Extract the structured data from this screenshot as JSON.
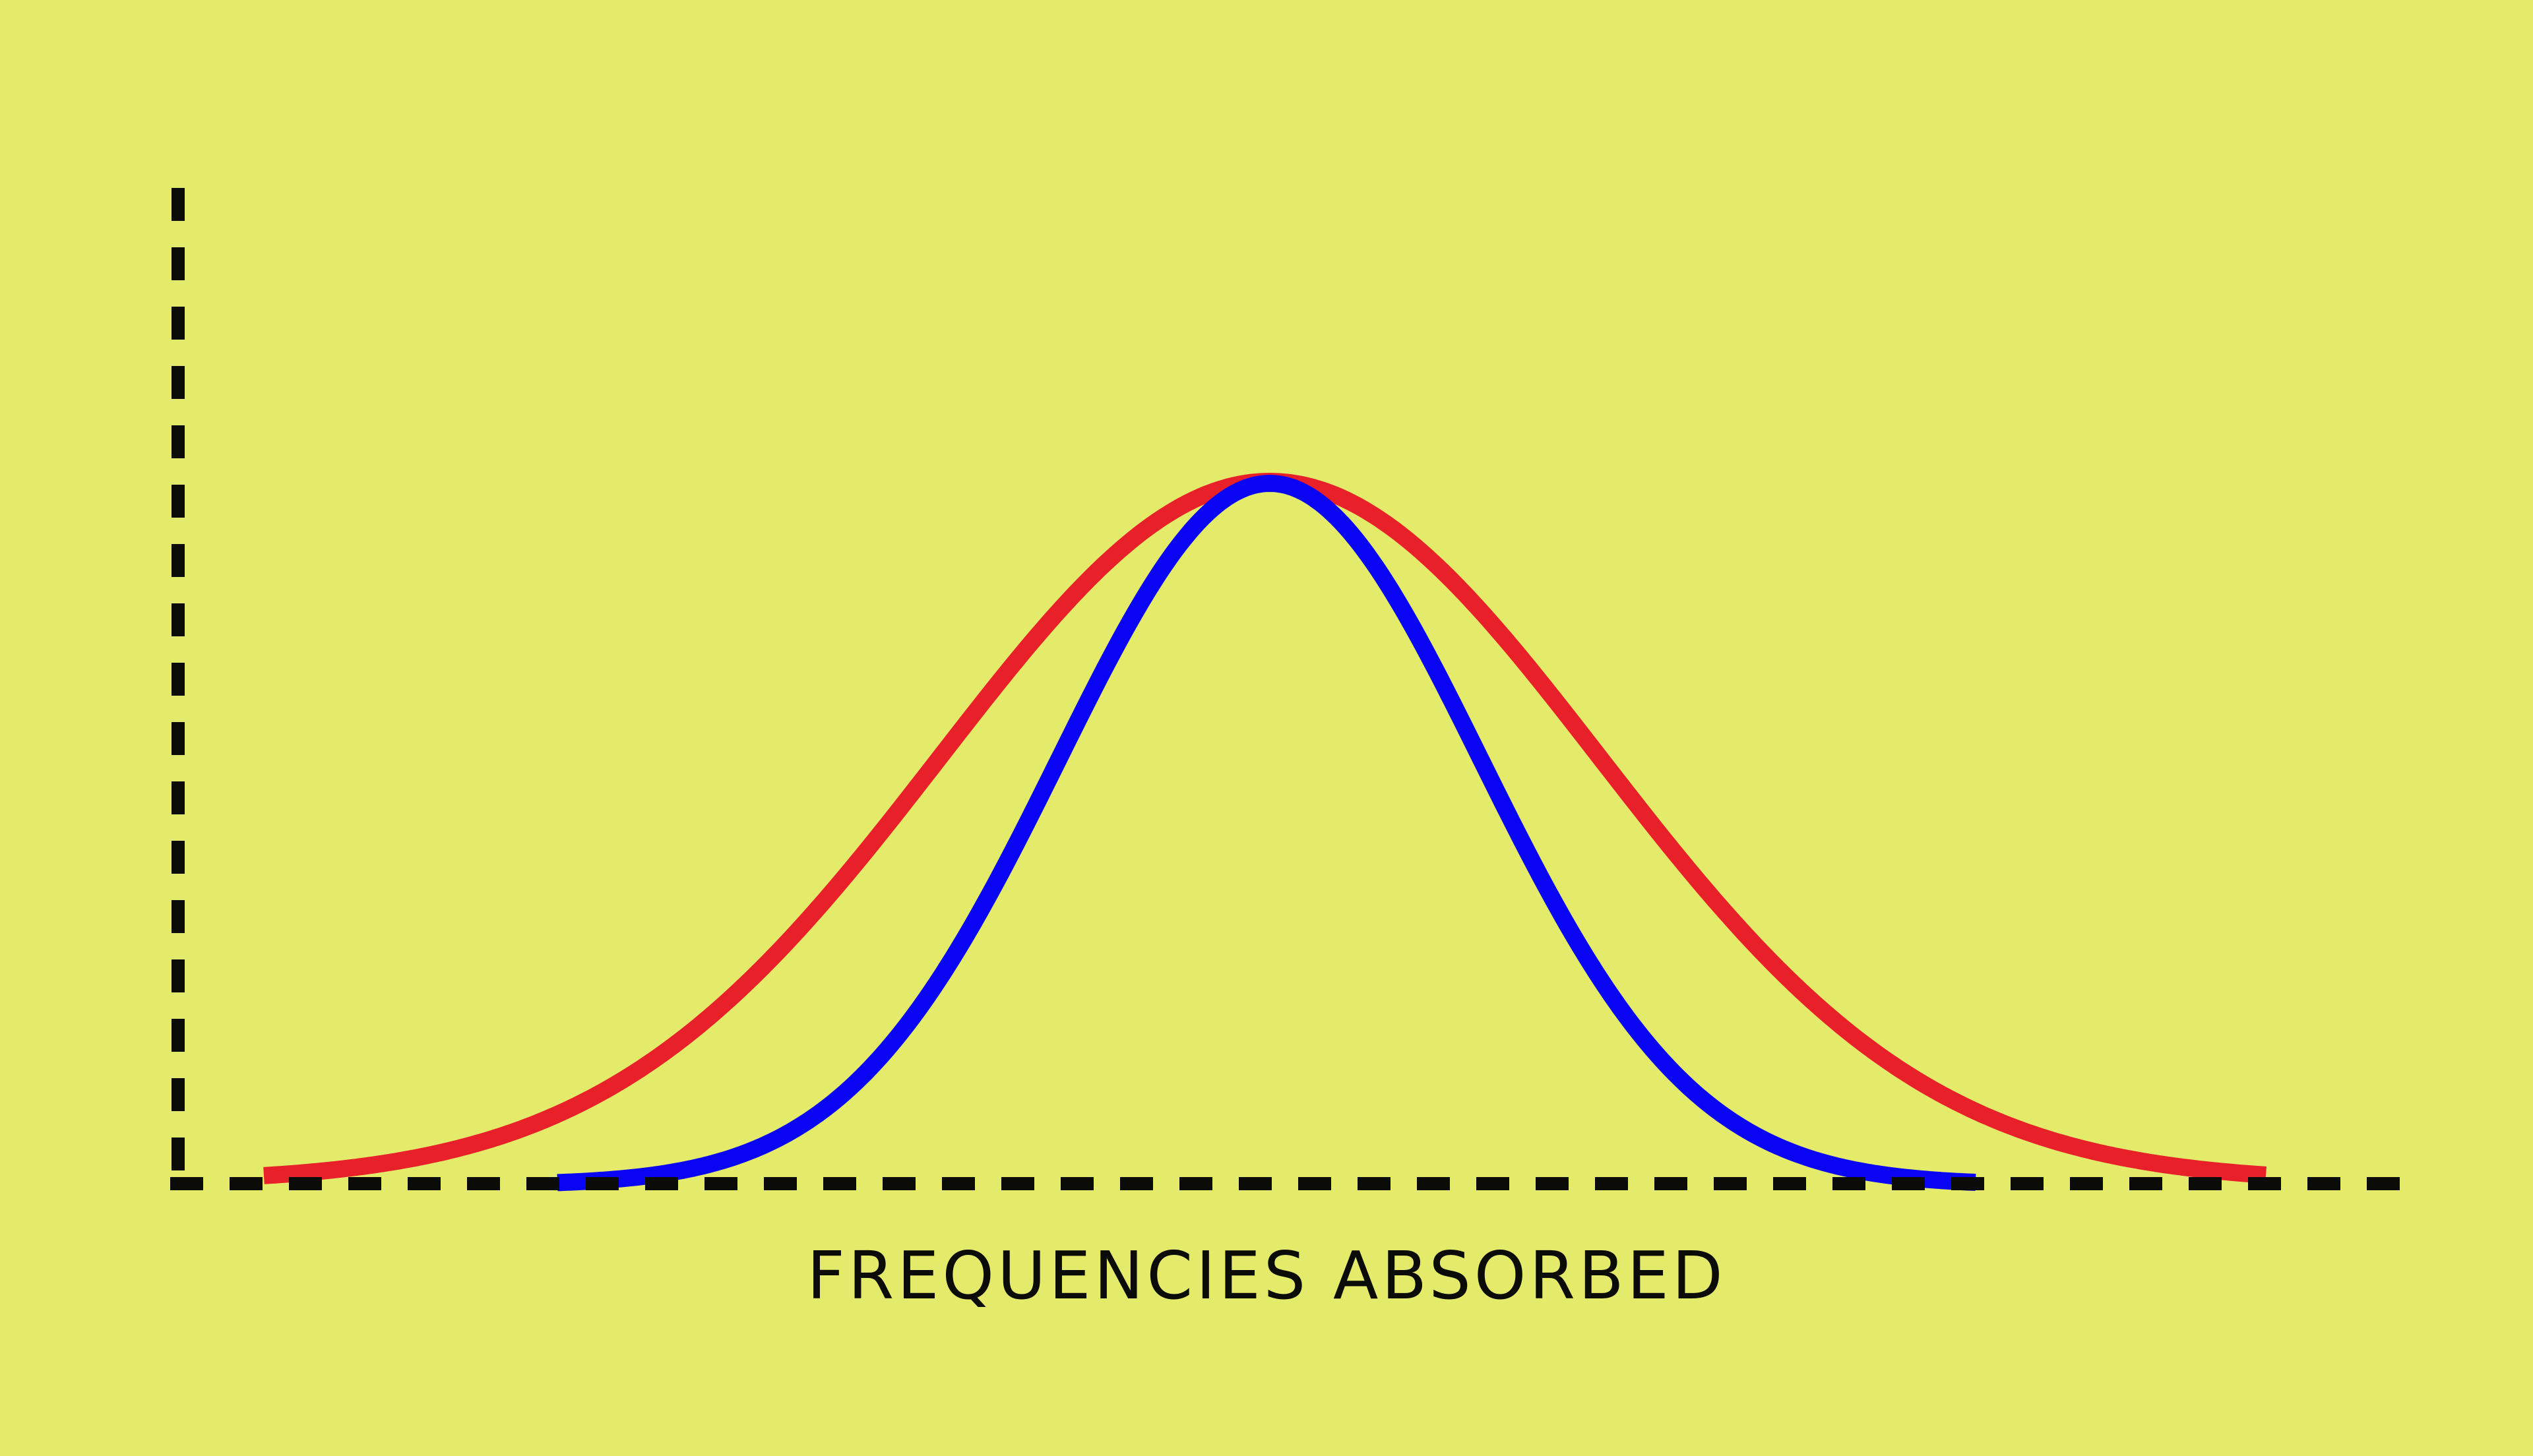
{
  "background": "#e4ea6a",
  "axis_color": "#0b0b08",
  "x_axis_label": "FREQUENCIES ABSORBED",
  "curves": [
    {
      "id": "broad",
      "color": "#e8202a",
      "relative_width": "broad"
    },
    {
      "id": "narrow",
      "color": "#0a04f4",
      "relative_width": "narrow"
    }
  ]
}
